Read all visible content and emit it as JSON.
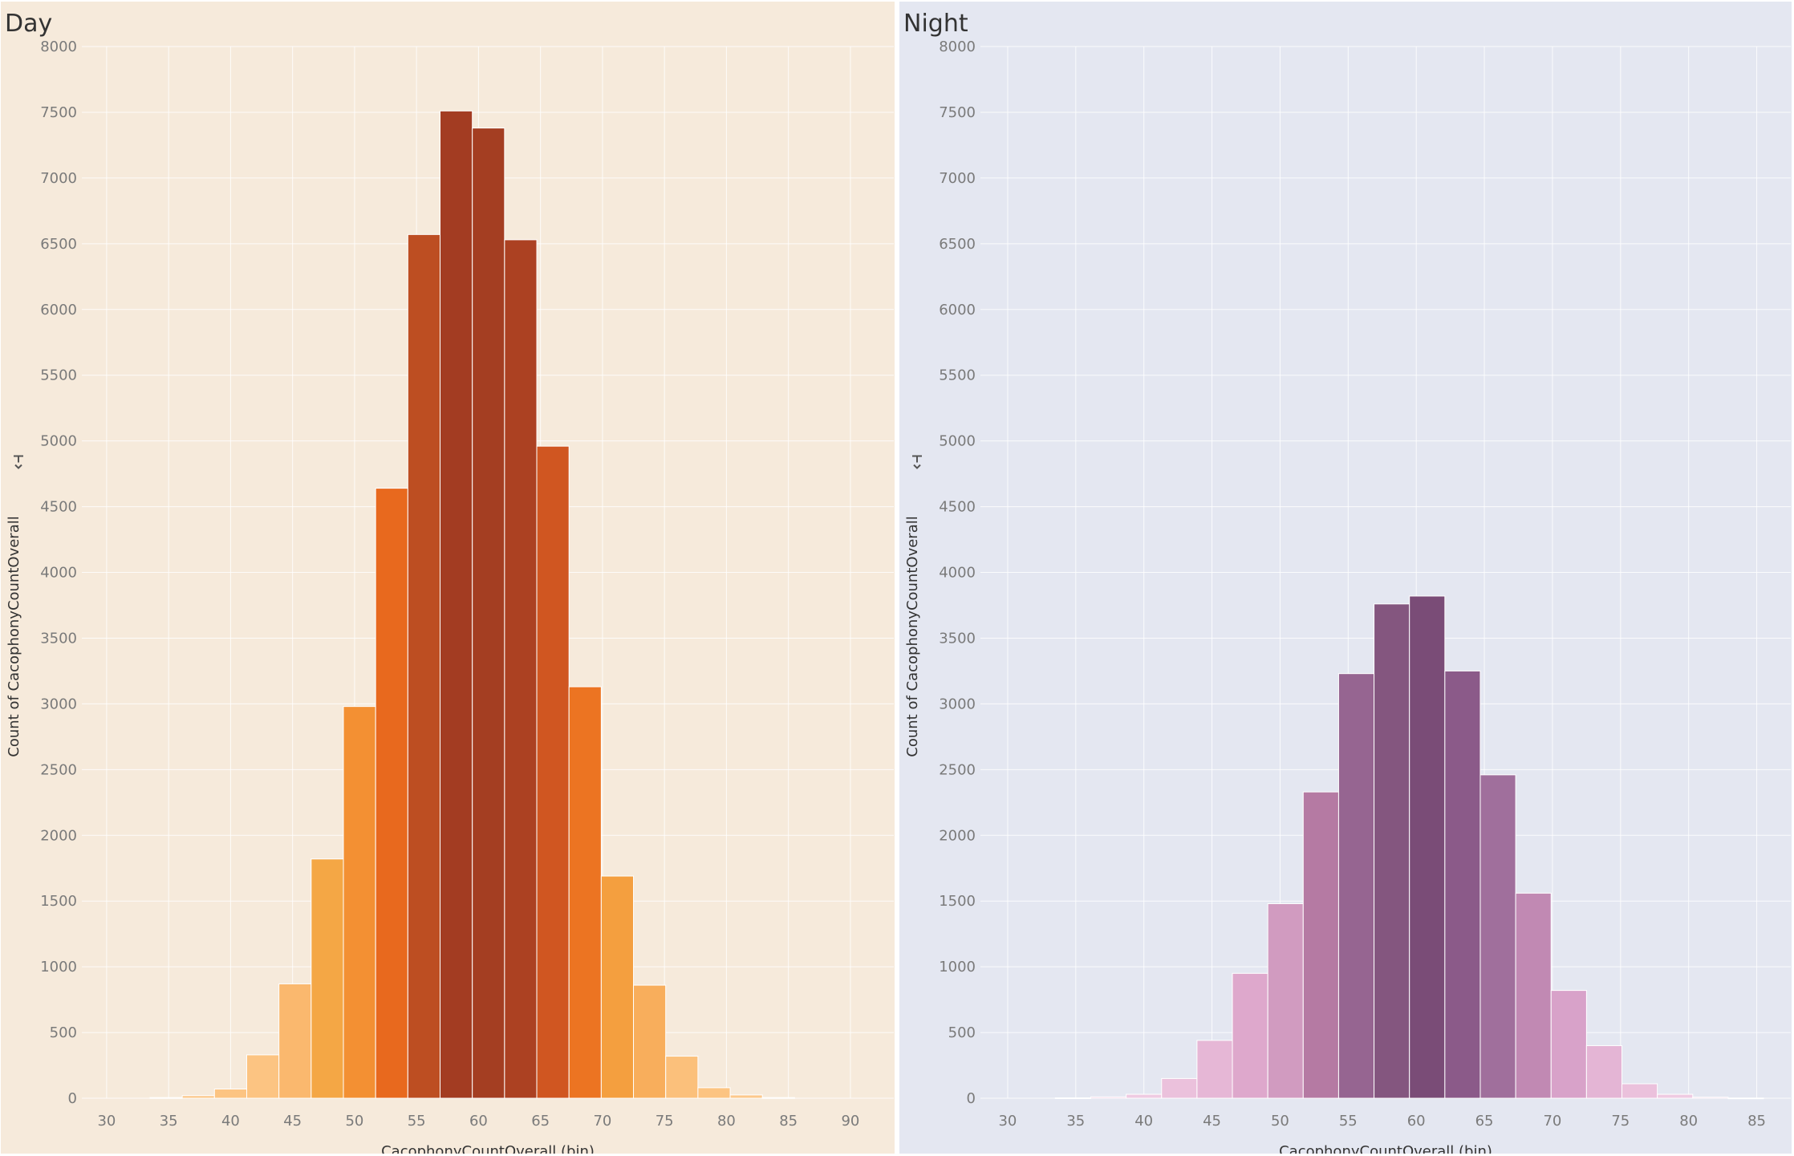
{
  "chart_data": [
    {
      "type": "bar",
      "title": "Day",
      "xlabel": "CacophonyCountOverall (bin)",
      "ylabel": "Count of CacophonyCountOverall",
      "ylabel_icon": "sort-icon",
      "background": "#f6eadb",
      "xlim": [
        28,
        93.5
      ],
      "ylim": [
        0,
        8000
      ],
      "xticks": [
        30,
        35,
        40,
        45,
        50,
        55,
        60,
        65,
        70,
        75,
        80,
        85,
        90
      ],
      "yticks": [
        0,
        500,
        1000,
        1500,
        2000,
        2500,
        3000,
        3500,
        4000,
        4500,
        5000,
        5500,
        6000,
        6500,
        7000,
        7500,
        8000
      ],
      "bin_width": 2.6,
      "bins": [
        {
          "x": 33.5,
          "value": 5,
          "color": "#ffd7a6"
        },
        {
          "x": 36.1,
          "value": 20,
          "color": "#fcc88b"
        },
        {
          "x": 38.7,
          "value": 70,
          "color": "#fcc482"
        },
        {
          "x": 41.3,
          "value": 330,
          "color": "#fcc482"
        },
        {
          "x": 43.9,
          "value": 870,
          "color": "#fab86e"
        },
        {
          "x": 46.5,
          "value": 1820,
          "color": "#f4a745"
        },
        {
          "x": 49.1,
          "value": 2980,
          "color": "#f39033"
        },
        {
          "x": 51.7,
          "value": 4640,
          "color": "#e8691e"
        },
        {
          "x": 54.3,
          "value": 6570,
          "color": "#bd4e22"
        },
        {
          "x": 56.9,
          "value": 7510,
          "color": "#a33c22"
        },
        {
          "x": 59.5,
          "value": 7380,
          "color": "#a43e22"
        },
        {
          "x": 62.1,
          "value": 6530,
          "color": "#ac4122"
        },
        {
          "x": 64.7,
          "value": 4960,
          "color": "#d05621"
        },
        {
          "x": 67.3,
          "value": 3130,
          "color": "#ec7422"
        },
        {
          "x": 69.9,
          "value": 1690,
          "color": "#f49f3f"
        },
        {
          "x": 72.5,
          "value": 860,
          "color": "#f8ae5c"
        },
        {
          "x": 75.1,
          "value": 320,
          "color": "#fbc07b"
        },
        {
          "x": 77.7,
          "value": 80,
          "color": "#fcc482"
        },
        {
          "x": 80.3,
          "value": 25,
          "color": "#fcc88b"
        },
        {
          "x": 82.9,
          "value": 5,
          "color": "#ffd7a6"
        }
      ]
    },
    {
      "type": "bar",
      "title": "Night",
      "xlabel": "CacophonyCountOverall (bin)",
      "ylabel": "Count of CacophonyCountOverall",
      "ylabel_icon": "sort-icon",
      "background": "#e4e7f1",
      "xlim": [
        28,
        87.5
      ],
      "ylim": [
        0,
        8000
      ],
      "xticks": [
        30,
        35,
        40,
        45,
        50,
        55,
        60,
        65,
        70,
        75,
        80,
        85
      ],
      "yticks": [
        0,
        500,
        1000,
        1500,
        2000,
        2500,
        3000,
        3500,
        4000,
        4500,
        5000,
        5500,
        6000,
        6500,
        7000,
        7500,
        8000
      ],
      "bin_width": 2.6,
      "bins": [
        {
          "x": 33.5,
          "value": 3,
          "color": "#f4d5e8"
        },
        {
          "x": 36.1,
          "value": 10,
          "color": "#f0cce2"
        },
        {
          "x": 38.7,
          "value": 30,
          "color": "#efcbe2"
        },
        {
          "x": 41.3,
          "value": 150,
          "color": "#ebc1dc"
        },
        {
          "x": 43.9,
          "value": 440,
          "color": "#e6b7d6"
        },
        {
          "x": 46.5,
          "value": 950,
          "color": "#dea8cc"
        },
        {
          "x": 49.1,
          "value": 1480,
          "color": "#d19bc0"
        },
        {
          "x": 51.7,
          "value": 2330,
          "color": "#b57aa3"
        },
        {
          "x": 54.3,
          "value": 3230,
          "color": "#966591"
        },
        {
          "x": 56.9,
          "value": 3760,
          "color": "#84567f"
        },
        {
          "x": 59.5,
          "value": 3820,
          "color": "#7a4c77"
        },
        {
          "x": 62.1,
          "value": 3250,
          "color": "#8b5a89"
        },
        {
          "x": 64.7,
          "value": 2460,
          "color": "#a06f9c"
        },
        {
          "x": 67.3,
          "value": 1560,
          "color": "#c189b3"
        },
        {
          "x": 69.9,
          "value": 820,
          "color": "#d8a2c9"
        },
        {
          "x": 72.5,
          "value": 400,
          "color": "#e4b5d5"
        },
        {
          "x": 75.1,
          "value": 110,
          "color": "#ebc1dc"
        },
        {
          "x": 77.7,
          "value": 30,
          "color": "#efcbe2"
        },
        {
          "x": 80.3,
          "value": 8,
          "color": "#f0cce2"
        },
        {
          "x": 82.9,
          "value": 2,
          "color": "#f4d5e8"
        }
      ]
    }
  ]
}
